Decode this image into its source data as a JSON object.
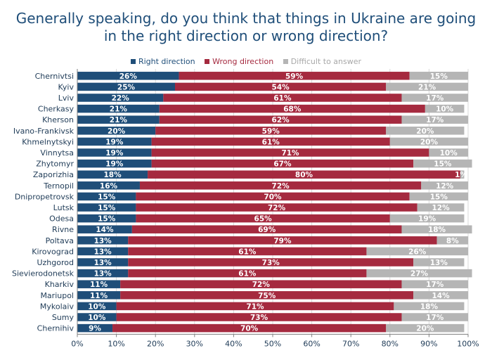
{
  "title": {
    "line1": "Generally speaking, do you think that things in Ukraine are going",
    "line2": "in the right direction or wrong direction?"
  },
  "chart_data": {
    "type": "bar",
    "orientation": "horizontal",
    "stacked": true,
    "title": "Generally speaking, do you think that things in Ukraine are going in the right direction or wrong direction?",
    "categories": [
      "Chernivtsi",
      "Kyiv",
      "Lviv",
      "Cherkasy",
      "Kherson",
      "Ivano-Frankivsk",
      "Khmelnytskyi",
      "Vinnytsa",
      "Zhytomyr",
      "Zaporizhia",
      "Ternopil",
      "Dnipropetrovsk",
      "Lutsk",
      "Odesa",
      "Rivne",
      "Poltava",
      "Kirovograd",
      "Uzhgorod",
      "Sievierodonetsk",
      "Kharkiv",
      "Mariupol",
      "Mykolaiv",
      "Sumy",
      "Chernihiv"
    ],
    "series": [
      {
        "name": "Right direction",
        "color": "#1f4e79",
        "values": [
          26,
          25,
          22,
          21,
          21,
          20,
          19,
          19,
          19,
          18,
          16,
          15,
          15,
          15,
          14,
          13,
          13,
          13,
          13,
          11,
          11,
          10,
          10,
          9
        ]
      },
      {
        "name": "Wrong direction",
        "color": "#a52a3f",
        "values": [
          59,
          54,
          61,
          68,
          62,
          59,
          61,
          71,
          67,
          80,
          72,
          70,
          72,
          65,
          69,
          79,
          61,
          73,
          61,
          72,
          75,
          71,
          73,
          70
        ]
      },
      {
        "name": "Difficult to answer",
        "color": "#b5b5b5",
        "values": [
          15,
          21,
          17,
          10,
          17,
          20,
          20,
          10,
          15,
          1,
          12,
          15,
          12,
          19,
          18,
          8,
          26,
          13,
          27,
          17,
          14,
          18,
          17,
          20
        ]
      }
    ],
    "xlim": [
      0,
      100
    ],
    "xticks": [
      "0%",
      "10%",
      "20%",
      "30%",
      "40%",
      "50%",
      "60%",
      "70%",
      "80%",
      "90%",
      "100%"
    ],
    "value_suffix": "%",
    "grid": true,
    "legend_position": "top"
  }
}
